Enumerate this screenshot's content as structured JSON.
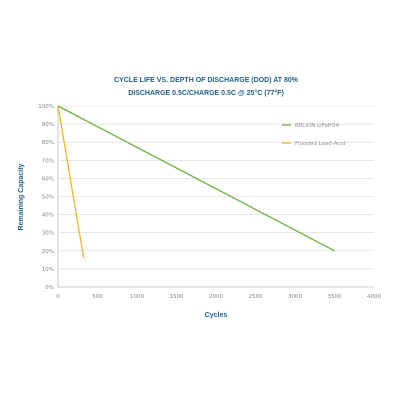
{
  "chart_data": {
    "type": "line",
    "title_lines": [
      "CYCLE LIFE VS. DEPTH OF DISCHARGE (DOD) AT 80%",
      "DISCHARGE 0.5C/CHARGE 0.5C @ 25°C (77°F)"
    ],
    "xlabel": "Cycles",
    "ylabel": "Remaining Capacity",
    "xlim": [
      0,
      4000
    ],
    "ylim": [
      0,
      100
    ],
    "x_ticks": [
      0,
      500,
      1000,
      1500,
      2000,
      2500,
      3000,
      3500,
      4000
    ],
    "x_tick_labels": [
      "0",
      "500",
      "1000",
      "1500",
      "2000",
      "2500",
      "3000",
      "3500",
      "4000"
    ],
    "y_ticks": [
      0,
      10,
      20,
      30,
      40,
      50,
      60,
      70,
      80,
      90,
      100
    ],
    "y_tick_labels": [
      "0%",
      "10%",
      "20%",
      "30%",
      "40%",
      "50%",
      "60%",
      "70%",
      "80%",
      "90%",
      "100%"
    ],
    "grid": "horizontal",
    "legend_position": "top-right",
    "series": [
      {
        "name": "RELiON LiFePO4",
        "color": "#6cb33e",
        "points": [
          [
            0,
            100
          ],
          [
            3500,
            20
          ]
        ]
      },
      {
        "name": "Flooded Lead-Acid",
        "color": "#f2b42b",
        "points": [
          [
            0,
            100
          ],
          [
            325,
            16
          ]
        ]
      }
    ]
  }
}
